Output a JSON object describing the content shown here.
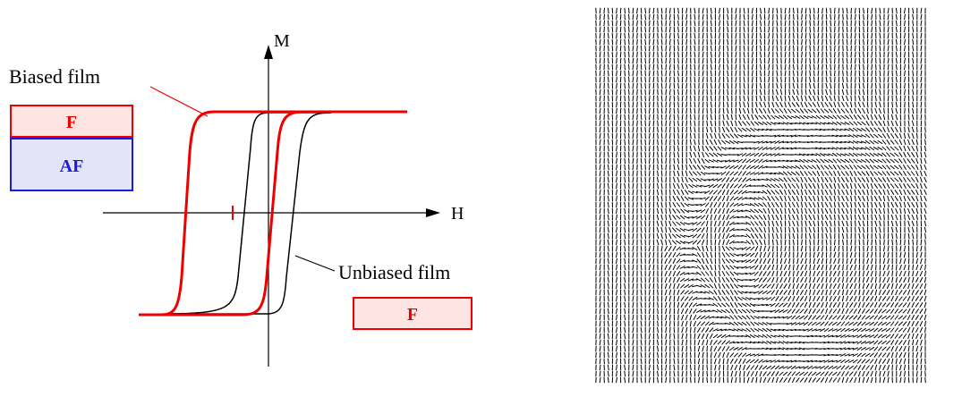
{
  "axes": {
    "vertical": "M",
    "horizontal": "H"
  },
  "labels": {
    "biased": "Biased film",
    "unbiased": "Unbiased film"
  },
  "biased_stack": {
    "top": "F",
    "bottom": "AF"
  },
  "unbiased_stack": {
    "layer": "F"
  }
}
